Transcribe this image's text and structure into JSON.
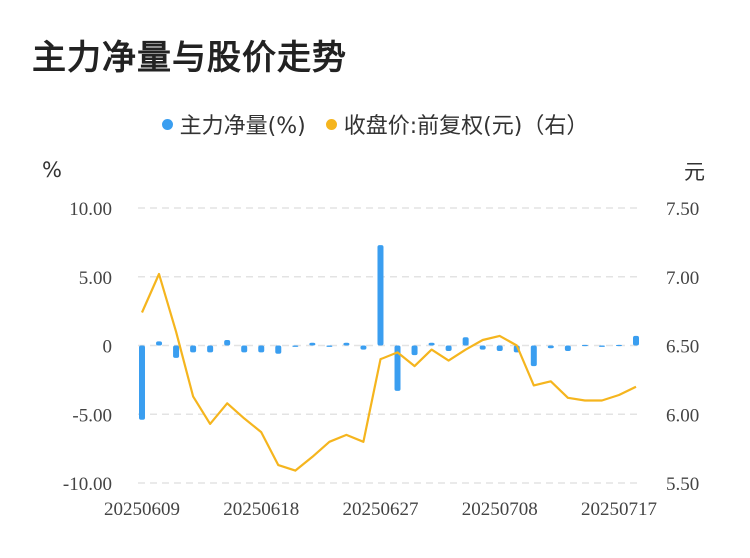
{
  "title": "主力净量与股价走势",
  "legend": {
    "bar_label": "主力净量(%)",
    "line_label": "收盘价:前复权(元)（右）"
  },
  "units": {
    "left": "%",
    "right": "元"
  },
  "colors": {
    "bar": "#3a9ef0",
    "line": "#f5b51e",
    "grid": "#e3e3e3"
  },
  "chart_data": {
    "type": "bar",
    "x": [
      "20250609",
      "20250610",
      "20250611",
      "20250612",
      "20250613",
      "20250616",
      "20250617",
      "20250618",
      "20250619",
      "20250620",
      "20250623",
      "20250624",
      "20250625",
      "20250626",
      "20250627",
      "20250630",
      "20250701",
      "20250702",
      "20250703",
      "20250704",
      "20250707",
      "20250708",
      "20250709",
      "20250710",
      "20250711",
      "20250714",
      "20250715",
      "20250716",
      "20250717",
      "20250718"
    ],
    "x_tick_labels": [
      "20250609",
      "20250618",
      "20250627",
      "20250708",
      "20250717"
    ],
    "left_axis": {
      "ticks": [
        "10.00",
        "5.00",
        "0",
        "-5.00",
        "-10.00"
      ],
      "ylim": [
        -10,
        10
      ]
    },
    "right_axis": {
      "ticks": [
        "7.50",
        "7.00",
        "6.50",
        "6.00",
        "5.50"
      ],
      "ylim": [
        5.5,
        7.5
      ]
    },
    "series": [
      {
        "name": "主力净量(%)",
        "type": "bar",
        "axis": "left",
        "values": [
          -5.4,
          0.3,
          -0.9,
          -0.5,
          -0.5,
          0.4,
          -0.5,
          -0.5,
          -0.6,
          -0.1,
          0.2,
          -0.1,
          0.2,
          -0.3,
          7.3,
          -3.3,
          -0.7,
          0.2,
          -0.4,
          0.6,
          -0.3,
          -0.4,
          -0.5,
          -1.5,
          -0.2,
          -0.4,
          -0.05,
          -0.1,
          0.0,
          0.7
        ]
      },
      {
        "name": "收盘价:前复权(元)（右）",
        "type": "line",
        "axis": "right",
        "values": [
          6.74,
          7.02,
          6.6,
          6.13,
          5.93,
          6.08,
          5.97,
          5.87,
          5.63,
          5.59,
          5.69,
          5.8,
          5.85,
          5.8,
          6.4,
          6.45,
          6.35,
          6.47,
          6.39,
          6.47,
          6.54,
          6.57,
          6.5,
          6.21,
          6.24,
          6.12,
          6.1,
          6.1,
          6.14,
          6.2
        ]
      }
    ]
  }
}
